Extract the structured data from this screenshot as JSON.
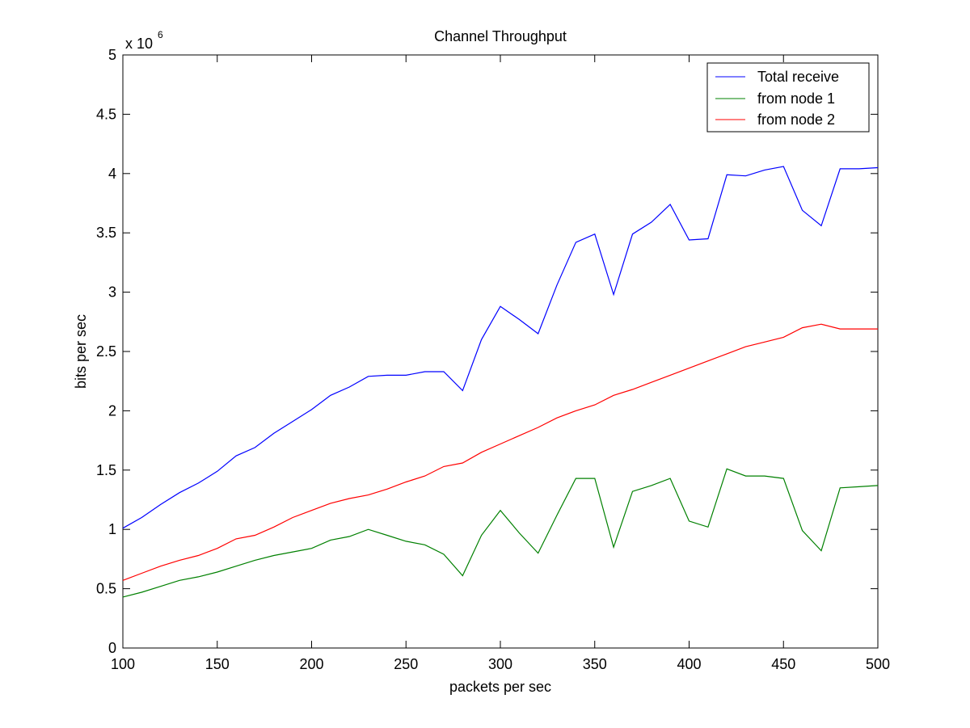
{
  "chart_data": {
    "type": "line",
    "title": "Channel Throughput",
    "xlabel": "packets per sec",
    "ylabel": "bits per sec",
    "y_multiplier_base": "x 10",
    "y_multiplier_exponent": "6",
    "xlim": [
      100,
      500
    ],
    "ylim": [
      0,
      5
    ],
    "x_ticks": [
      100,
      150,
      200,
      250,
      300,
      350,
      400,
      450,
      500
    ],
    "x_tick_labels": [
      "100",
      "150",
      "200",
      "250",
      "300",
      "350",
      "400",
      "450",
      "500"
    ],
    "y_ticks": [
      0,
      0.5,
      1,
      1.5,
      2,
      2.5,
      3,
      3.5,
      4,
      4.5,
      5
    ],
    "y_tick_labels": [
      "0",
      "0.5",
      "1",
      "1.5",
      "2",
      "2.5",
      "3",
      "3.5",
      "4",
      "4.5",
      "5"
    ],
    "grid": false,
    "legend_position": "top-right",
    "x": [
      100,
      110,
      120,
      130,
      140,
      150,
      160,
      170,
      180,
      190,
      200,
      210,
      220,
      230,
      240,
      250,
      260,
      270,
      280,
      290,
      300,
      310,
      320,
      330,
      340,
      350,
      360,
      370,
      380,
      390,
      400,
      410,
      420,
      430,
      440,
      450,
      460,
      470,
      480,
      490,
      500
    ],
    "series": [
      {
        "name": "Total receive",
        "color": "#0000ff",
        "values": [
          1.01,
          1.1,
          1.21,
          1.31,
          1.39,
          1.49,
          1.62,
          1.69,
          1.81,
          1.91,
          2.01,
          2.13,
          2.2,
          2.29,
          2.3,
          2.3,
          2.33,
          2.33,
          2.17,
          2.6,
          2.88,
          2.77,
          2.65,
          3.06,
          3.42,
          3.49,
          2.98,
          3.49,
          3.59,
          3.74,
          3.44,
          3.45,
          3.99,
          3.98,
          4.03,
          4.06,
          3.69,
          3.56,
          4.04,
          4.04,
          4.05
        ]
      },
      {
        "name": "from node 1",
        "color": "#008000",
        "values": [
          0.43,
          0.47,
          0.52,
          0.57,
          0.6,
          0.64,
          0.69,
          0.74,
          0.78,
          0.81,
          0.84,
          0.91,
          0.94,
          1.0,
          0.95,
          0.9,
          0.87,
          0.79,
          0.61,
          0.95,
          1.16,
          0.97,
          0.8,
          1.12,
          1.43,
          1.43,
          0.85,
          1.32,
          1.37,
          1.43,
          1.07,
          1.02,
          1.51,
          1.45,
          1.45,
          1.43,
          0.99,
          0.82,
          1.35,
          1.36,
          1.37
        ]
      },
      {
        "name": "from node 2",
        "color": "#ff0000",
        "values": [
          0.57,
          0.63,
          0.69,
          0.74,
          0.78,
          0.84,
          0.92,
          0.95,
          1.02,
          1.1,
          1.16,
          1.22,
          1.26,
          1.29,
          1.34,
          1.4,
          1.45,
          1.53,
          1.56,
          1.65,
          1.72,
          1.79,
          1.86,
          1.94,
          2.0,
          2.05,
          2.13,
          2.18,
          2.24,
          2.3,
          2.36,
          2.42,
          2.48,
          2.54,
          2.58,
          2.62,
          2.7,
          2.73,
          2.69,
          2.69,
          2.69
        ]
      }
    ]
  }
}
